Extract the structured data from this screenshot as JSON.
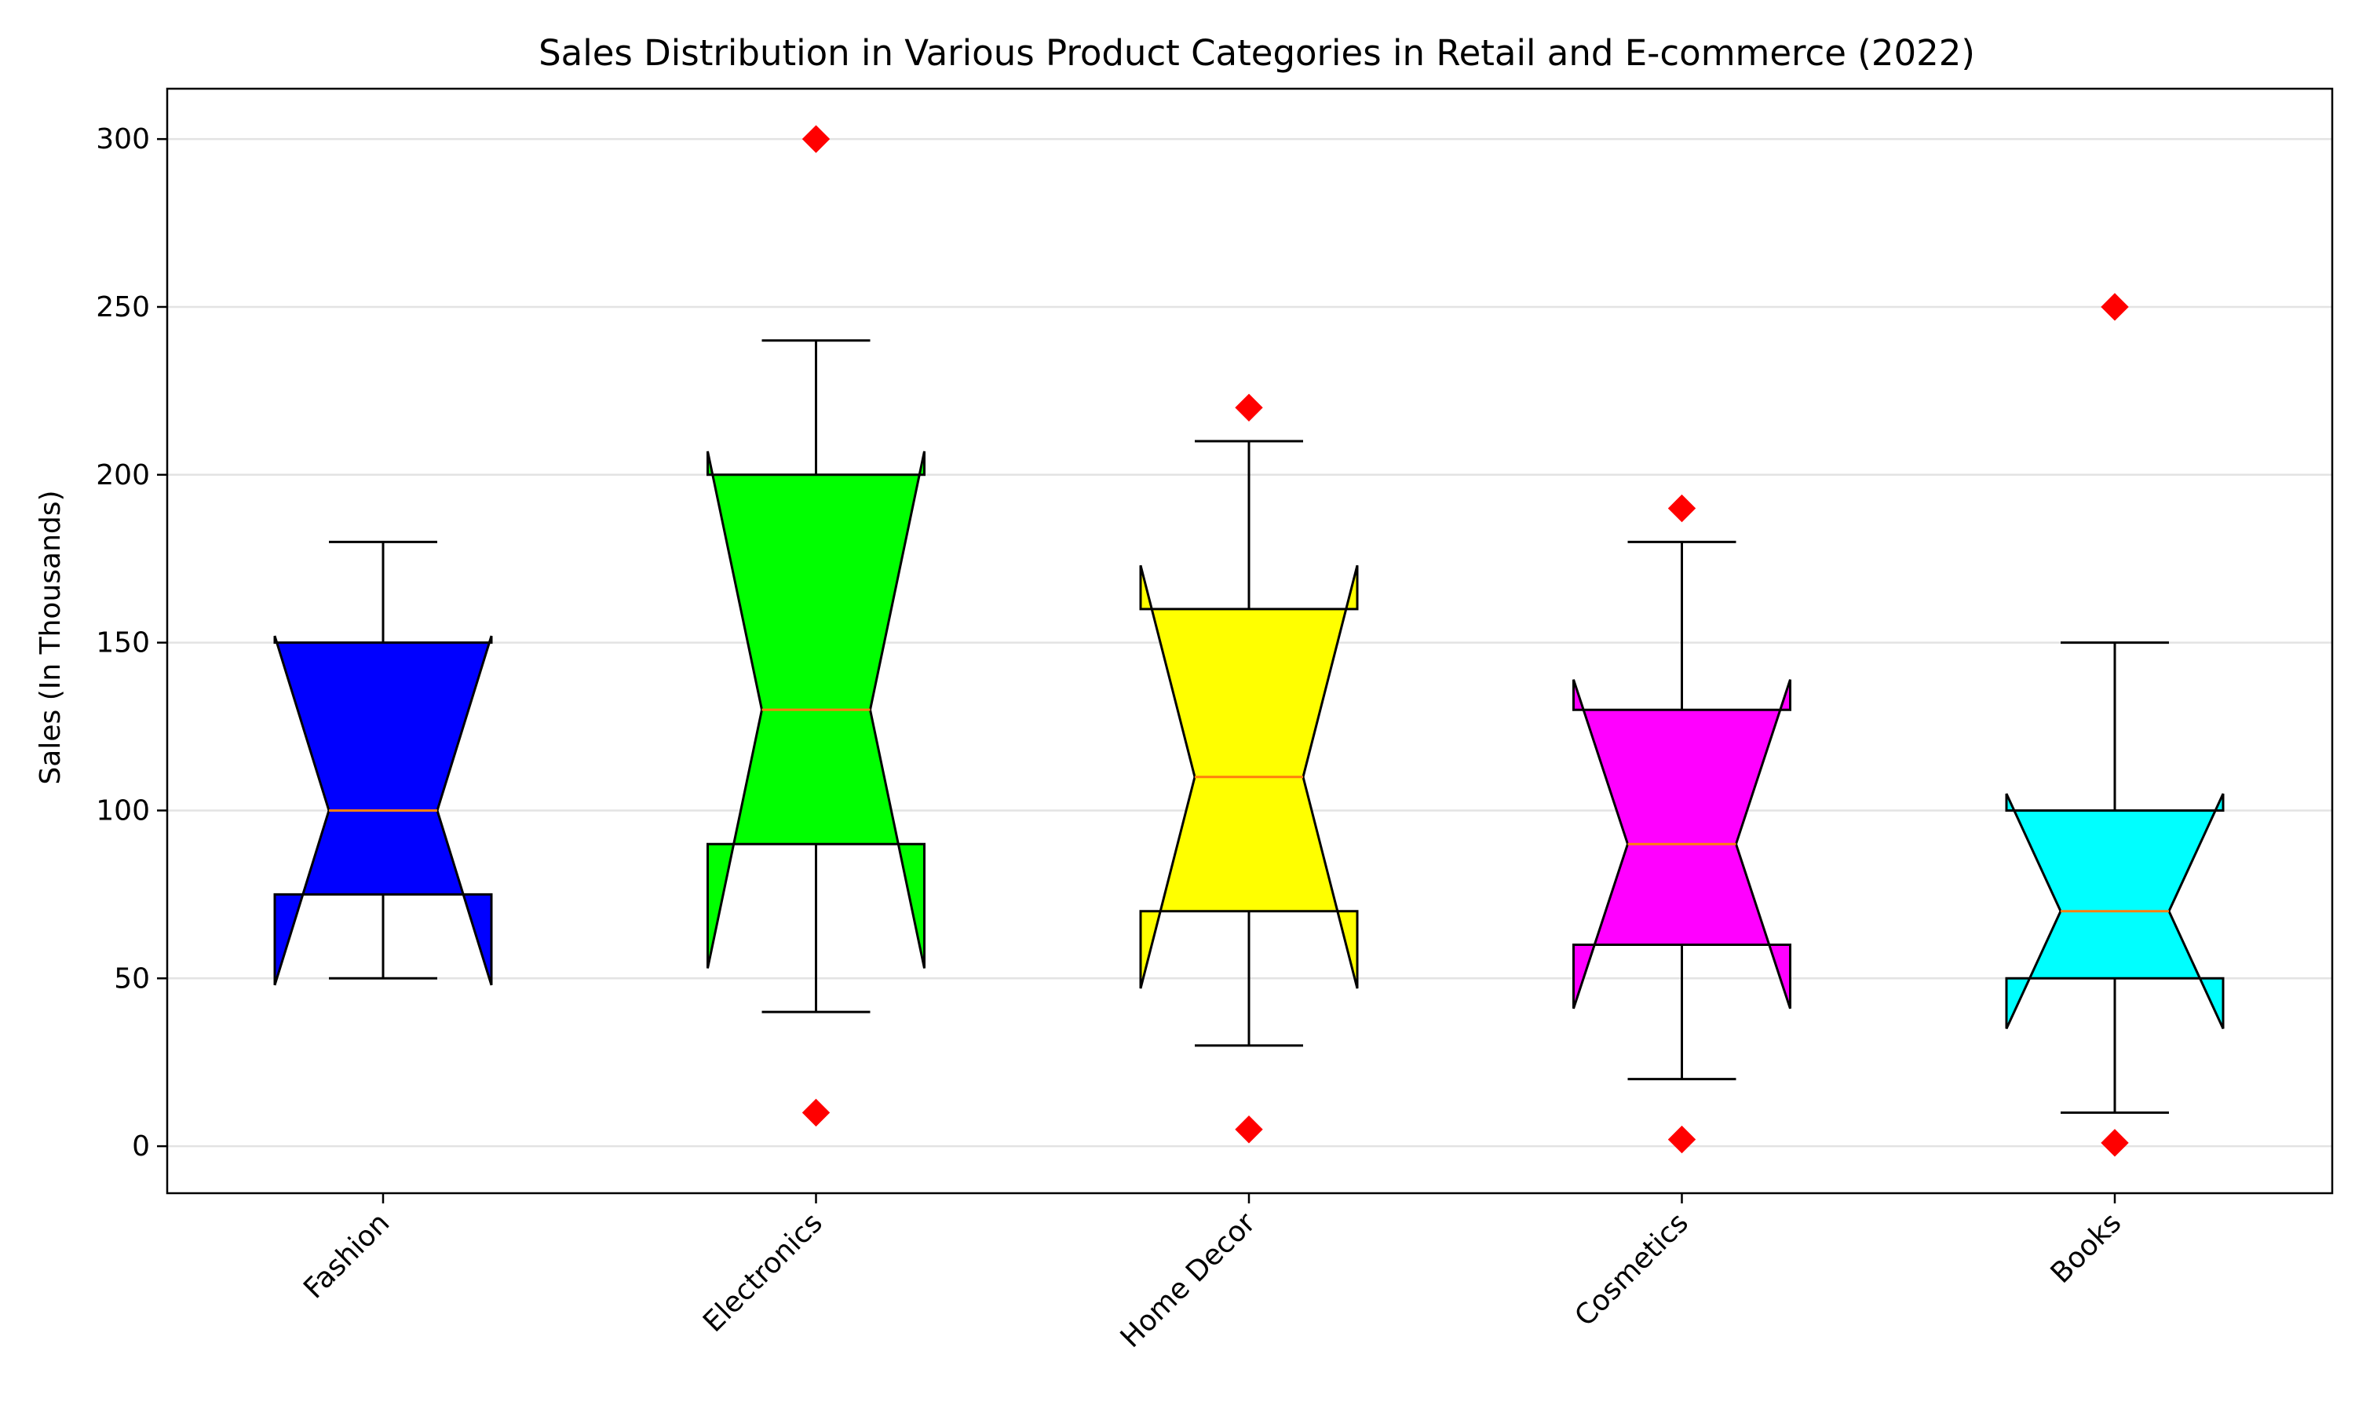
{
  "chart_data": {
    "type": "boxplot",
    "title": "Sales Distribution in Various Product Categories in Retail and E-commerce (2022)",
    "xlabel": "",
    "ylabel": "Sales (In Thousands)",
    "ylim": [
      -14,
      315
    ],
    "yticks": [
      0,
      50,
      100,
      150,
      200,
      250,
      300
    ],
    "grid": "horizontal",
    "notched": true,
    "categories": [
      "Fashion",
      "Electronics",
      "Home Decor",
      "Cosmetics",
      "Books"
    ],
    "boxes": [
      {
        "category": "Fashion",
        "color": "#0000ff",
        "whisker_low": 50,
        "q1": 75,
        "median": 100,
        "q3": 150,
        "whisker_high": 180,
        "notch_low": 48,
        "notch_high": 152,
        "outliers": []
      },
      {
        "category": "Electronics",
        "color": "#00ff00",
        "whisker_low": 40,
        "q1": 90,
        "median": 130,
        "q3": 200,
        "whisker_high": 240,
        "notch_low": 53,
        "notch_high": 207,
        "outliers": [
          10,
          300
        ]
      },
      {
        "category": "Home Decor",
        "color": "#ffff00",
        "whisker_low": 30,
        "q1": 70,
        "median": 110,
        "q3": 160,
        "whisker_high": 210,
        "notch_low": 47,
        "notch_high": 173,
        "outliers": [
          5,
          220
        ]
      },
      {
        "category": "Cosmetics",
        "color": "#ff00ff",
        "whisker_low": 20,
        "q1": 60,
        "median": 90,
        "q3": 130,
        "whisker_high": 180,
        "notch_low": 41,
        "notch_high": 139,
        "outliers": [
          2,
          190
        ]
      },
      {
        "category": "Books",
        "color": "#00ffff",
        "whisker_low": 10,
        "q1": 50,
        "median": 70,
        "q3": 100,
        "whisker_high": 150,
        "notch_low": 35,
        "notch_high": 105,
        "outliers": [
          1,
          250
        ]
      }
    ],
    "median_color": "#ff7f0e",
    "outlier_color": "#ff0000",
    "outlier_marker": "diamond"
  }
}
